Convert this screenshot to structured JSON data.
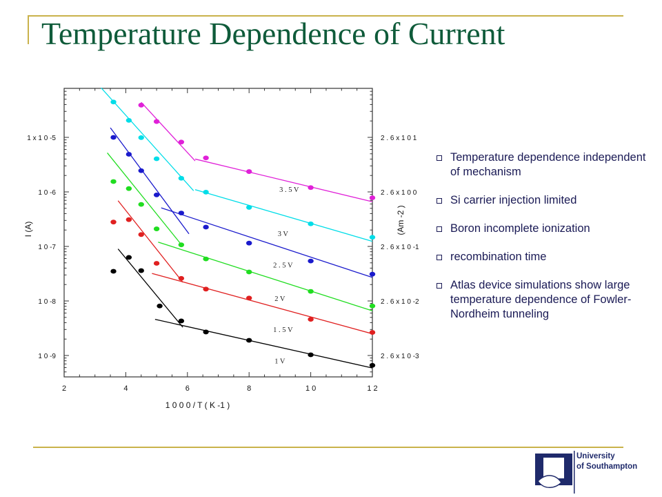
{
  "slide": {
    "title": "Temperature Dependence of Current",
    "bullets": [
      "Temperature dependence independent of mechanism",
      "Si carrier injection limited",
      "Boron incomplete ionization",
      "recombination time",
      "Atlas device simulations show large temperature dependence of Fowler-Nordheim tunneling"
    ],
    "logo": {
      "line1": "University",
      "line2": "of Southampton"
    }
  },
  "chart_data": {
    "type": "scatter",
    "title": "",
    "xlabel": "1 0 0 0 / T  ( K -1 )",
    "ylabel": "I (A)",
    "y2label": "(Am -2 )",
    "xlim": [
      2,
      12
    ],
    "ylim": [
      1e-09,
      0.0001
    ],
    "yscale": "log",
    "grid": false,
    "x_ticks": [
      2,
      4,
      6,
      8,
      10,
      12
    ],
    "x_tick_labels": [
      "2",
      "4",
      "6",
      "8",
      "1 0",
      "1 2"
    ],
    "y_ticks": [
      1e-09,
      1e-08,
      1e-07,
      1e-06,
      1e-05
    ],
    "y_tick_labels": [
      "1 0 -9",
      "1 0 -8",
      "1 0 -7",
      "1 0 -6",
      "1 x 1 0 -5"
    ],
    "y2_tick_labels": [
      "2 . 6 x 1 0 -3",
      "2 . 6 x 1 0 -2",
      "2 . 6 x 1 0 -1",
      "2 . 6 x 1 0 0",
      "2 . 6 x 1 0 1"
    ],
    "series": [
      {
        "name": "1 V",
        "color": "#000000",
        "x": [
          3.6,
          4.1,
          4.5,
          5.1,
          5.8,
          6.6,
          8.0,
          10.0,
          12.0
        ],
        "y": [
          3.5e-08,
          6.3e-08,
          3.6e-08,
          8.1e-09,
          4.3e-09,
          2.7e-09,
          1.9e-09,
          1.03e-09,
          6.6e-10
        ]
      },
      {
        "name": "1 . 5 V",
        "color": "#e02020",
        "x": [
          3.6,
          4.1,
          4.5,
          5.0,
          5.8,
          6.6,
          8.0,
          10.0,
          12.0
        ],
        "y": [
          2.8e-07,
          3.1e-07,
          1.65e-07,
          4.9e-08,
          2.6e-08,
          1.65e-08,
          1.13e-08,
          4.6e-09,
          2.65e-09
        ]
      },
      {
        "name": "2 V",
        "color": "#20dd20",
        "x": [
          3.6,
          4.1,
          4.5,
          5.0,
          5.8,
          6.6,
          8.0,
          10.0,
          12.0
        ],
        "y": [
          1.55e-06,
          1.15e-06,
          5.9e-07,
          2.1e-07,
          1.07e-07,
          5.9e-08,
          3.4e-08,
          1.5e-08,
          8.1e-09
        ]
      },
      {
        "name": "2 . 5 V",
        "color": "#1a1acc",
        "x": [
          3.6,
          4.1,
          4.5,
          5.0,
          5.8,
          6.6,
          8.0,
          10.0,
          12.0
        ],
        "y": [
          1e-05,
          4.9e-06,
          2.45e-06,
          8.8e-07,
          4.1e-07,
          2.26e-07,
          1.15e-07,
          5.4e-08,
          3.1e-08
        ]
      },
      {
        "name": "3 V",
        "color": "#00dde8",
        "x": [
          3.6,
          4.1,
          4.5,
          5.0,
          5.8,
          6.6,
          8.0,
          10.0,
          12.0
        ],
        "y": [
          4.45e-05,
          2.05e-05,
          9.9e-06,
          4.05e-06,
          1.78e-06,
          9.9e-07,
          5.2e-07,
          2.6e-07,
          1.47e-07
        ]
      },
      {
        "name": "3 . 5 V",
        "color": "#e020d8",
        "x": [
          4.5,
          5.0,
          5.8,
          6.6,
          8.0,
          10.0,
          12.0
        ],
        "y": [
          3.9e-05,
          1.95e-05,
          8.2e-06,
          4.2e-06,
          2.36e-06,
          1.2e-06,
          7.8e-07
        ]
      }
    ],
    "fit_lines": [
      {
        "series": "1 V",
        "segments": [
          [
            [
              3.75,
              9e-08
            ],
            [
              5.85,
              3.3e-09
            ]
          ],
          [
            [
              4.95,
              4.6e-09
            ],
            [
              12.0,
              5.9e-10
            ]
          ]
        ]
      },
      {
        "series": "1 . 5 V",
        "segments": [
          [
            [
              3.75,
              6.9e-07
            ],
            [
              5.85,
              2.2e-08
            ]
          ],
          [
            [
              4.85,
              3.2e-08
            ],
            [
              12.0,
              2.5e-09
            ]
          ]
        ]
      },
      {
        "series": "2 V",
        "segments": [
          [
            [
              3.4,
              5.2e-06
            ],
            [
              5.85,
              1e-07
            ]
          ],
          [
            [
              5.05,
              1.2e-07
            ],
            [
              12.0,
              6.6e-09
            ]
          ]
        ]
      },
      {
        "series": "2 . 5 V",
        "segments": [
          [
            [
              3.5,
              1.5e-05
            ],
            [
              6.05,
              1.7e-07
            ]
          ],
          [
            [
              5.15,
              5.1e-07
            ],
            [
              12.0,
              2.7e-08
            ]
          ]
        ]
      },
      {
        "series": "3 V",
        "segments": [
          [
            [
              3.2,
              8.1e-05
            ],
            [
              6.2,
              1.05e-06
            ]
          ],
          [
            [
              6.25,
              1.1e-06
            ],
            [
              12.0,
              1.24e-07
            ]
          ]
        ]
      },
      {
        "series": "3 . 5 V",
        "segments": [
          [
            [
              4.5,
              4.4e-05
            ],
            [
              6.25,
              3.7e-06
            ]
          ],
          [
            [
              6.25,
              4e-06
            ],
            [
              12.0,
              6.6e-07
            ]
          ]
        ]
      }
    ],
    "annotations": [
      {
        "text": "3 . 5 V",
        "x": 9.3,
        "y": 1e-06
      },
      {
        "text": "3 V",
        "x": 9.1,
        "y": 1.55e-07
      },
      {
        "text": "2 . 5 V",
        "x": 9.1,
        "y": 4.1e-08
      },
      {
        "text": "2 V",
        "x": 9.0,
        "y": 1e-08
      },
      {
        "text": "1 . 5 V",
        "x": 9.1,
        "y": 2.7e-09
      },
      {
        "text": "1 V",
        "x": 9.0,
        "y": 7.2e-10
      }
    ]
  }
}
